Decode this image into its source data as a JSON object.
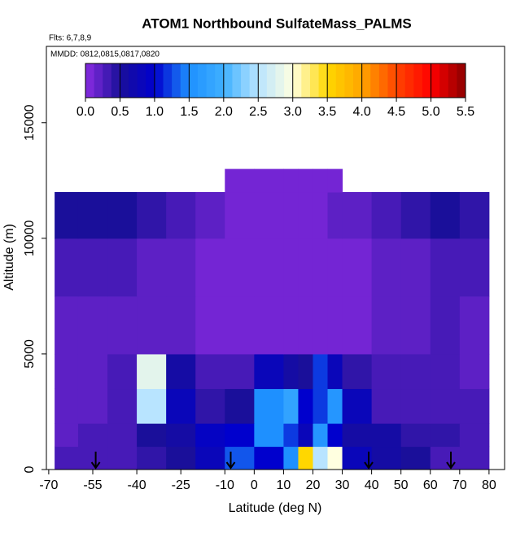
{
  "chart_data": {
    "type": "heatmap",
    "title": "ATOM1 Northbound SulfateMass_PALMS",
    "subtitle": "Flts: 6,7,8,9",
    "annotation": "MMDD: 0812,0815,0817,0820",
    "x_label": "Latitude (deg N)",
    "y_label": "Altitude (m)",
    "xlim": [
      -70.8,
      85.3
    ],
    "ylim": [
      0,
      18300
    ],
    "xticks": [
      -70,
      -55,
      -40,
      -25,
      -10,
      0,
      10,
      20,
      30,
      40,
      50,
      60,
      70,
      80
    ],
    "yticks": [
      0,
      5000,
      10000,
      15000
    ],
    "x_edges": [
      -68,
      -60,
      -50,
      -40,
      -30,
      -20,
      -10,
      0,
      10,
      15,
      20,
      25,
      30,
      40,
      50,
      60,
      70,
      80
    ],
    "y_edges": [
      0,
      1000,
      2000,
      3500,
      5000,
      7500,
      10000,
      12000,
      13000
    ],
    "z": [
      [
        0.3,
        0.3,
        0.3,
        0.4,
        0.5,
        0.8,
        1.3,
        1.0,
        1.5,
        3.5,
        2.5,
        3.0,
        0.8,
        0.6,
        0.5,
        0.3,
        0.3
      ],
      [
        0.2,
        0.3,
        0.3,
        0.5,
        0.6,
        0.9,
        1.0,
        1.5,
        1.2,
        0.8,
        1.6,
        1.0,
        0.6,
        0.6,
        0.4,
        0.4,
        0.3
      ],
      [
        0.2,
        0.2,
        0.3,
        2.5,
        0.8,
        0.4,
        0.5,
        1.5,
        1.8,
        1.0,
        1.2,
        1.6,
        0.8,
        0.3,
        0.3,
        0.3,
        0.3
      ],
      [
        0.2,
        0.2,
        0.3,
        2.8,
        0.6,
        0.3,
        0.3,
        0.8,
        0.6,
        0.5,
        1.2,
        0.8,
        0.4,
        0.3,
        0.3,
        0.3,
        0.2
      ],
      [
        0.2,
        0.2,
        0.2,
        0.2,
        0.2,
        0.1,
        0.1,
        0.1,
        0.1,
        0.1,
        0.1,
        0.1,
        0.1,
        0.2,
        0.2,
        0.3,
        0.2
      ],
      [
        0.3,
        0.3,
        0.3,
        0.2,
        0.2,
        0.1,
        0.1,
        0.1,
        0.1,
        0.1,
        0.1,
        0.1,
        0.1,
        0.2,
        0.2,
        0.3,
        0.3
      ],
      [
        0.5,
        0.5,
        0.5,
        0.4,
        0.3,
        0.2,
        0.1,
        0.1,
        0.1,
        0.1,
        0.1,
        0.2,
        0.2,
        0.3,
        0.4,
        0.5,
        0.4
      ],
      [
        null,
        null,
        null,
        null,
        null,
        null,
        0.1,
        0.1,
        0.1,
        0.1,
        0.1,
        0.1,
        null,
        null,
        null,
        null,
        null
      ]
    ],
    "arrows_x": [
      -54,
      -8,
      39,
      67
    ],
    "colorbar_lim": [
      0,
      5.5
    ],
    "colorbar_ticks": [
      {
        "value": 0,
        "label": "0.0"
      },
      0.5,
      {
        "value": 1,
        "label": "1.0"
      },
      1.5,
      {
        "value": 2,
        "label": "2.0"
      },
      2.5,
      {
        "value": 3,
        "label": "3.0"
      },
      3.5,
      {
        "value": 4,
        "label": "4.0"
      },
      4.5,
      {
        "value": 5,
        "label": "5.0"
      },
      5.5
    ],
    "colorscale": [
      [
        0,
        "#8a2be2"
      ],
      [
        0.5,
        "#1a0f9a"
      ],
      [
        1,
        "#0000cd"
      ],
      [
        1.5,
        "#1e90ff"
      ],
      [
        2,
        "#3fb0ff"
      ],
      [
        2.5,
        "#b8e4ff"
      ],
      [
        3,
        "#ffffe0"
      ],
      [
        3.5,
        "#ffd700"
      ],
      [
        4,
        "#ffa500"
      ],
      [
        4.5,
        "#ff4500"
      ],
      [
        5,
        "#ff0000"
      ],
      [
        5.5,
        "#8b0000"
      ]
    ]
  }
}
